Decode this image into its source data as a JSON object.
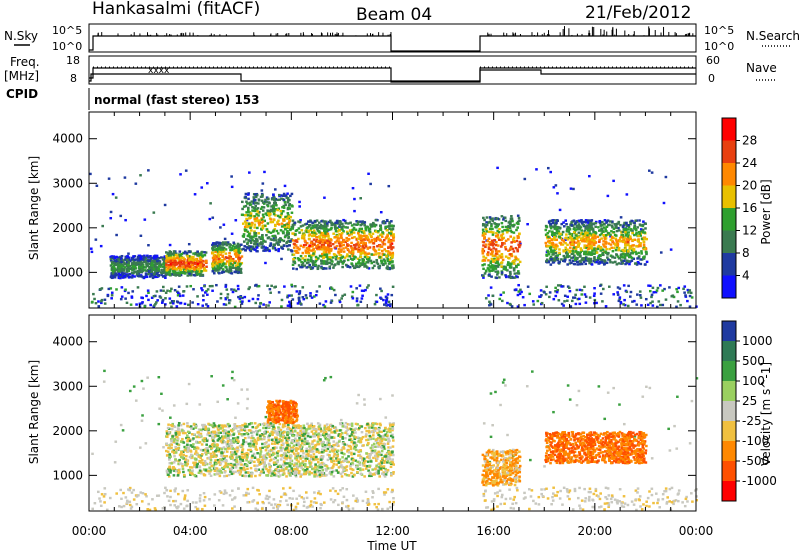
{
  "header": {
    "station": "Hankasalmi (fitACF)",
    "beam": "Beam 04",
    "date": "21/Feb/2012"
  },
  "side_labels": {
    "nsky": "N.Sky",
    "nsearch": "N.Search",
    "freq": "Freq.",
    "mhz": "[MHz]",
    "nave": "Nave",
    "cpid": "CPID"
  },
  "counts_panel": {
    "left_ticks": [
      "10^5",
      "10^0"
    ],
    "right_ticks": [
      "10^5",
      "10^0"
    ]
  },
  "freq_panel": {
    "left_ticks": [
      "18",
      "8"
    ],
    "right_ticks": [
      "60",
      "0"
    ]
  },
  "cpid_text": "normal (fast stereo) 153",
  "chart_data": [
    {
      "type": "heatmap",
      "name": "power",
      "xlabel": "",
      "ylabel": "Slant Range [km]",
      "x_range": [
        "00:00",
        "24:00"
      ],
      "ylim": [
        200,
        4600
      ],
      "yticks": [
        1000,
        2000,
        3000,
        4000
      ],
      "colorbar_label": "Power [dB]",
      "colorbar_ticks": [
        "28",
        "24",
        "20",
        "16",
        "12",
        "8",
        "4"
      ],
      "colorbar_colors": [
        "#ff0000",
        "#e84010",
        "#ff8800",
        "#e8c000",
        "#2f9f2f",
        "#3a7a50",
        "#1f3aa0",
        "#1010ff"
      ],
      "data_gaps": [
        [
          "12:00",
          "15:30"
        ]
      ],
      "bands": [
        {
          "start": 0.8,
          "end": 3.0,
          "range_lo": 900,
          "range_hi": 1400,
          "peak": 12
        },
        {
          "start": 3.0,
          "end": 4.6,
          "range_lo": 950,
          "range_hi": 1500,
          "peak": 26
        },
        {
          "start": 4.8,
          "end": 6.0,
          "range_lo": 1000,
          "range_hi": 1700,
          "peak": 22
        },
        {
          "start": 6.0,
          "end": 8.0,
          "range_lo": 1500,
          "range_hi": 2800,
          "peak": 18
        },
        {
          "start": 8.0,
          "end": 12.0,
          "range_lo": 1100,
          "range_hi": 2200,
          "peak": 24
        },
        {
          "start": 15.5,
          "end": 17.0,
          "range_lo": 900,
          "range_hi": 2300,
          "peak": 24
        },
        {
          "start": 18.0,
          "end": 22.0,
          "range_lo": 1200,
          "range_hi": 2200,
          "peak": 20
        }
      ]
    },
    {
      "type": "heatmap",
      "name": "velocity",
      "xlabel": "Time UT",
      "ylabel": "Slant Range [km]",
      "x_range": [
        "00:00",
        "24:00"
      ],
      "xticks": [
        "00:00",
        "04:00",
        "08:00",
        "12:00",
        "16:00",
        "20:00",
        "00:00"
      ],
      "ylim": [
        200,
        4600
      ],
      "yticks": [
        1000,
        2000,
        3000,
        4000
      ],
      "colorbar_label": "Velocity [m s^-1]",
      "colorbar_ticks": [
        "1000",
        "500",
        "100",
        "25",
        "-25",
        "-100",
        "-500",
        "-1000"
      ],
      "colorbar_colors": [
        "#1f3aa0",
        "#2f7a55",
        "#3aa040",
        "#9ad060",
        "#c8c8c0",
        "#f0c040",
        "#ff8800",
        "#ff5000",
        "#ff0000"
      ],
      "data_gaps": [
        [
          "12:00",
          "15:30"
        ]
      ],
      "bands": [
        {
          "start": 3.0,
          "end": 12.0,
          "range_lo": 1000,
          "range_hi": 2200,
          "value": 0
        },
        {
          "start": 7.0,
          "end": 8.2,
          "range_lo": 2200,
          "range_hi": 2700,
          "value": -500
        },
        {
          "start": 15.5,
          "end": 17.0,
          "range_lo": 800,
          "range_hi": 1600,
          "value": -100
        },
        {
          "start": 18.0,
          "end": 22.0,
          "range_lo": 1300,
          "range_hi": 2000,
          "value": -500
        }
      ]
    }
  ]
}
